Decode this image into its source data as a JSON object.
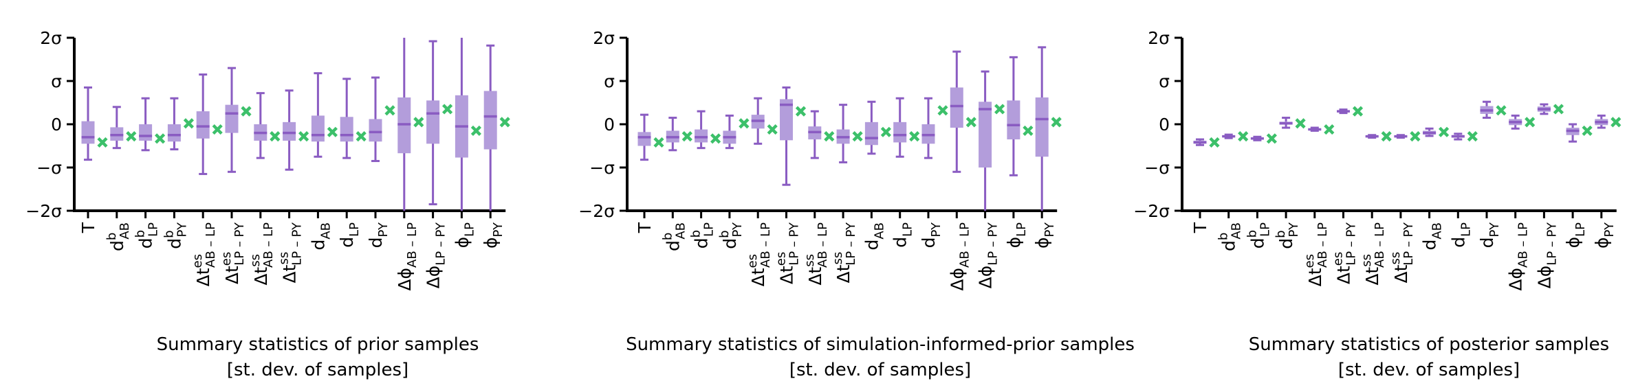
{
  "colors": {
    "box_fill": "#b39ddb",
    "box_line": "#8a5cc2",
    "marker": "#3cc06a",
    "axis": "#000000"
  },
  "parameters": [
    {
      "base": "T"
    },
    {
      "base": "d",
      "sup": "b",
      "sub": "AB"
    },
    {
      "base": "d",
      "sup": "b",
      "sub": "LP"
    },
    {
      "base": "d",
      "sup": "b",
      "sub": "PY"
    },
    {
      "base": "Δt",
      "sup": "es",
      "sub": "AB – LP"
    },
    {
      "base": "Δt",
      "sup": "es",
      "sub": "LP – PY"
    },
    {
      "base": "Δt",
      "sup": "ss",
      "sub": "AB – LP"
    },
    {
      "base": "Δt",
      "sup": "ss",
      "sub": "LP – PY"
    },
    {
      "base": "d",
      "sub": "AB"
    },
    {
      "base": "d",
      "sub": "LP"
    },
    {
      "base": "d",
      "sub": "PY"
    },
    {
      "base": "Δϕ",
      "sub": "AB – LP"
    },
    {
      "base": "Δϕ",
      "sub": "LP – PY"
    },
    {
      "base": "ϕ",
      "sub": "LP"
    },
    {
      "base": "ϕ",
      "sub": "PY"
    }
  ],
  "chart_data": [
    {
      "type": "box",
      "title": "Summary statistics of prior samples",
      "subtitle": "[st. dev. of samples]",
      "yticks": [
        {
          "value": 2,
          "label": "2σ"
        },
        {
          "value": 1,
          "label": "σ"
        },
        {
          "value": 0,
          "label": "0"
        },
        {
          "value": -1,
          "label": "−σ"
        },
        {
          "value": -2,
          "label": "−2σ"
        }
      ],
      "ylim": [
        -2,
        2
      ],
      "boxes": [
        {
          "whisker_low": -0.82,
          "q1": -0.45,
          "median": -0.3,
          "q3": 0.07,
          "whisker_high": 0.85,
          "marker": -0.42
        },
        {
          "whisker_low": -0.55,
          "q1": -0.38,
          "median": -0.25,
          "q3": -0.07,
          "whisker_high": 0.4,
          "marker": -0.28
        },
        {
          "whisker_low": -0.6,
          "q1": -0.38,
          "median": -0.27,
          "q3": 0.0,
          "whisker_high": 0.6,
          "marker": -0.33
        },
        {
          "whisker_low": -0.58,
          "q1": -0.4,
          "median": -0.25,
          "q3": 0.0,
          "whisker_high": 0.6,
          "marker": 0.02
        },
        {
          "whisker_low": -1.15,
          "q1": -0.33,
          "median": -0.05,
          "q3": 0.3,
          "whisker_high": 1.15,
          "marker": -0.12
        },
        {
          "whisker_low": -1.1,
          "q1": -0.2,
          "median": 0.25,
          "q3": 0.45,
          "whisker_high": 1.3,
          "marker": 0.3
        },
        {
          "whisker_low": -0.78,
          "q1": -0.38,
          "median": -0.2,
          "q3": 0.0,
          "whisker_high": 0.72,
          "marker": -0.28
        },
        {
          "whisker_low": -1.05,
          "q1": -0.38,
          "median": -0.2,
          "q3": 0.05,
          "whisker_high": 0.78,
          "marker": -0.28
        },
        {
          "whisker_low": -0.75,
          "q1": -0.4,
          "median": -0.25,
          "q3": 0.2,
          "whisker_high": 1.18,
          "marker": -0.18
        },
        {
          "whisker_low": -0.78,
          "q1": -0.4,
          "median": -0.25,
          "q3": 0.17,
          "whisker_high": 1.05,
          "marker": -0.28
        },
        {
          "whisker_low": -0.85,
          "q1": -0.4,
          "median": -0.18,
          "q3": 0.12,
          "whisker_high": 1.08,
          "marker": 0.32
        },
        {
          "whisker_low": -2.0,
          "q1": -0.67,
          "median": 0.0,
          "q3": 0.62,
          "whisker_high": 2.0,
          "marker": 0.05
        },
        {
          "whisker_low": -1.85,
          "q1": -0.45,
          "median": 0.25,
          "q3": 0.55,
          "whisker_high": 1.92,
          "marker": 0.35
        },
        {
          "whisker_low": -2.0,
          "q1": -0.77,
          "median": -0.05,
          "q3": 0.67,
          "whisker_high": 2.0,
          "marker": -0.15
        },
        {
          "whisker_low": -2.0,
          "q1": -0.58,
          "median": 0.18,
          "q3": 0.77,
          "whisker_high": 1.82,
          "marker": 0.05
        }
      ]
    },
    {
      "type": "box",
      "title": "Summary statistics of simulation-informed-prior samples",
      "subtitle": "[st. dev. of samples]",
      "yticks": [
        {
          "value": 2,
          "label": "2σ"
        },
        {
          "value": 1,
          "label": "σ"
        },
        {
          "value": 0,
          "label": "0"
        },
        {
          "value": -1,
          "label": "−σ"
        },
        {
          "value": -2,
          "label": "−2σ"
        }
      ],
      "ylim": [
        -2,
        2
      ],
      "boxes": [
        {
          "whisker_low": -0.82,
          "q1": -0.5,
          "median": -0.3,
          "q3": -0.18,
          "whisker_high": 0.22,
          "marker": -0.42
        },
        {
          "whisker_low": -0.6,
          "q1": -0.42,
          "median": -0.3,
          "q3": -0.15,
          "whisker_high": 0.15,
          "marker": -0.28
        },
        {
          "whisker_low": -0.55,
          "q1": -0.42,
          "median": -0.3,
          "q3": -0.12,
          "whisker_high": 0.3,
          "marker": -0.33
        },
        {
          "whisker_low": -0.55,
          "q1": -0.45,
          "median": -0.3,
          "q3": -0.15,
          "whisker_high": 0.2,
          "marker": 0.02
        },
        {
          "whisker_low": -0.45,
          "q1": -0.1,
          "median": 0.08,
          "q3": 0.22,
          "whisker_high": 0.6,
          "marker": -0.12
        },
        {
          "whisker_low": -1.4,
          "q1": -0.37,
          "median": 0.45,
          "q3": 0.58,
          "whisker_high": 0.85,
          "marker": 0.3
        },
        {
          "whisker_low": -0.78,
          "q1": -0.35,
          "median": -0.18,
          "q3": -0.05,
          "whisker_high": 0.3,
          "marker": -0.28
        },
        {
          "whisker_low": -0.88,
          "q1": -0.45,
          "median": -0.3,
          "q3": -0.12,
          "whisker_high": 0.45,
          "marker": -0.28
        },
        {
          "whisker_low": -0.68,
          "q1": -0.48,
          "median": -0.32,
          "q3": 0.05,
          "whisker_high": 0.52,
          "marker": -0.18
        },
        {
          "whisker_low": -0.75,
          "q1": -0.42,
          "median": -0.25,
          "q3": 0.05,
          "whisker_high": 0.6,
          "marker": -0.28
        },
        {
          "whisker_low": -0.78,
          "q1": -0.45,
          "median": -0.25,
          "q3": 0.0,
          "whisker_high": 0.6,
          "marker": 0.32
        },
        {
          "whisker_low": -1.1,
          "q1": -0.08,
          "median": 0.42,
          "q3": 0.85,
          "whisker_high": 1.68,
          "marker": 0.05
        },
        {
          "whisker_low": -2.0,
          "q1": -1.0,
          "median": 0.35,
          "q3": 0.52,
          "whisker_high": 1.22,
          "marker": 0.35
        },
        {
          "whisker_low": -1.18,
          "q1": -0.35,
          "median": -0.02,
          "q3": 0.55,
          "whisker_high": 1.55,
          "marker": -0.15
        },
        {
          "whisker_low": -2.0,
          "q1": -0.75,
          "median": 0.12,
          "q3": 0.62,
          "whisker_high": 1.78,
          "marker": 0.05
        }
      ]
    },
    {
      "type": "box",
      "title": "Summary statistics of posterior samples",
      "subtitle": "[st. dev. of samples]",
      "yticks": [
        {
          "value": 2,
          "label": "2σ"
        },
        {
          "value": 1,
          "label": "σ"
        },
        {
          "value": 0,
          "label": "0"
        },
        {
          "value": -1,
          "label": "−σ"
        },
        {
          "value": -2,
          "label": "−2σ"
        }
      ],
      "ylim": [
        -2,
        2
      ],
      "boxes": [
        {
          "whisker_low": -0.48,
          "q1": -0.44,
          "median": -0.42,
          "q3": -0.38,
          "whisker_high": -0.35,
          "marker": -0.42
        },
        {
          "whisker_low": -0.32,
          "q1": -0.3,
          "median": -0.28,
          "q3": -0.26,
          "whisker_high": -0.24,
          "marker": -0.28
        },
        {
          "whisker_low": -0.37,
          "q1": -0.35,
          "median": -0.33,
          "q3": -0.31,
          "whisker_high": -0.29,
          "marker": -0.33
        },
        {
          "whisker_low": -0.08,
          "q1": 0.0,
          "median": 0.02,
          "q3": 0.06,
          "whisker_high": 0.15,
          "marker": 0.02
        },
        {
          "whisker_low": -0.15,
          "q1": -0.13,
          "median": -0.12,
          "q3": -0.1,
          "whisker_high": -0.08,
          "marker": -0.12
        },
        {
          "whisker_low": 0.26,
          "q1": 0.28,
          "median": 0.3,
          "q3": 0.32,
          "whisker_high": 0.34,
          "marker": 0.3
        },
        {
          "whisker_low": -0.31,
          "q1": -0.3,
          "median": -0.28,
          "q3": -0.27,
          "whisker_high": -0.25,
          "marker": -0.28
        },
        {
          "whisker_low": -0.31,
          "q1": -0.3,
          "median": -0.28,
          "q3": -0.27,
          "whisker_high": -0.25,
          "marker": -0.28
        },
        {
          "whisker_low": -0.27,
          "q1": -0.24,
          "median": -0.2,
          "q3": -0.15,
          "whisker_high": -0.1,
          "marker": -0.18
        },
        {
          "whisker_low": -0.35,
          "q1": -0.31,
          "median": -0.28,
          "q3": -0.25,
          "whisker_high": -0.22,
          "marker": -0.28
        },
        {
          "whisker_low": 0.15,
          "q1": 0.24,
          "median": 0.32,
          "q3": 0.42,
          "whisker_high": 0.52,
          "marker": 0.32
        },
        {
          "whisker_low": -0.1,
          "q1": -0.02,
          "median": 0.05,
          "q3": 0.12,
          "whisker_high": 0.2,
          "marker": 0.05
        },
        {
          "whisker_low": 0.24,
          "q1": 0.29,
          "median": 0.35,
          "q3": 0.41,
          "whisker_high": 0.46,
          "marker": 0.35
        },
        {
          "whisker_low": -0.4,
          "q1": -0.25,
          "median": -0.15,
          "q3": -0.08,
          "whisker_high": 0.0,
          "marker": -0.15
        },
        {
          "whisker_low": -0.08,
          "q1": -0.02,
          "median": 0.05,
          "q3": 0.12,
          "whisker_high": 0.2,
          "marker": 0.05
        }
      ]
    }
  ]
}
